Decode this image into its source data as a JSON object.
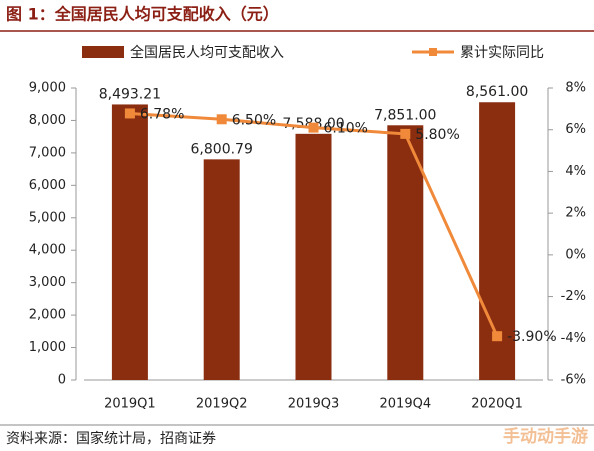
{
  "chart_data": {
    "type": "bar-line",
    "title": "图 1：全国居民人均可支配收入（元）",
    "source": "资料来源：国家统计局，招商证券",
    "watermark": "手动动手游",
    "categories": [
      "2019Q1",
      "2019Q2",
      "2019Q3",
      "2019Q4",
      "2020Q1"
    ],
    "series": [
      {
        "name": "全国居民人均可支配收入",
        "type": "bar",
        "color": "#8b2e10",
        "values": [
          8493.21,
          6800.79,
          7588.0,
          7851.0,
          8561.0
        ],
        "value_labels": [
          "8,493.21",
          "6,800.79",
          "7,588.00",
          "7,851.00",
          "8,561.00"
        ]
      },
      {
        "name": "累计实际同比",
        "type": "line",
        "color": "#f08a3a",
        "axis": "y2",
        "values": [
          6.78,
          6.5,
          6.1,
          5.8,
          -3.9
        ],
        "value_labels": [
          "6.78%",
          "6.50%",
          "6.10%",
          "5.80%",
          "-3.90%"
        ]
      }
    ],
    "ylim": [
      0,
      9000
    ],
    "yticks": [
      0,
      {
        "value": 1000,
        "label": "1,000"
      },
      {
        "value": 2000,
        "label": "2,000"
      },
      {
        "value": 3000,
        "label": "3,000"
      },
      {
        "value": 4000,
        "label": "4,000"
      },
      {
        "value": 5000,
        "label": "5,000"
      },
      {
        "value": 6000,
        "label": "6,000"
      },
      {
        "value": 7000,
        "label": "7,000"
      },
      {
        "value": 8000,
        "label": "8,000"
      },
      {
        "value": 9000,
        "label": "9,000"
      }
    ],
    "y2lim": [
      -6,
      8
    ],
    "y2ticks": [
      {
        "value": -6,
        "label": "-6%"
      },
      {
        "value": -4,
        "label": "-4%"
      },
      {
        "value": -2,
        "label": "-2%"
      },
      {
        "value": 0,
        "label": "0%"
      },
      {
        "value": 2,
        "label": "2%"
      },
      {
        "value": 4,
        "label": "4%"
      },
      {
        "value": 6,
        "label": "6%"
      },
      {
        "value": 8,
        "label": "8%"
      }
    ],
    "legend": "top"
  }
}
